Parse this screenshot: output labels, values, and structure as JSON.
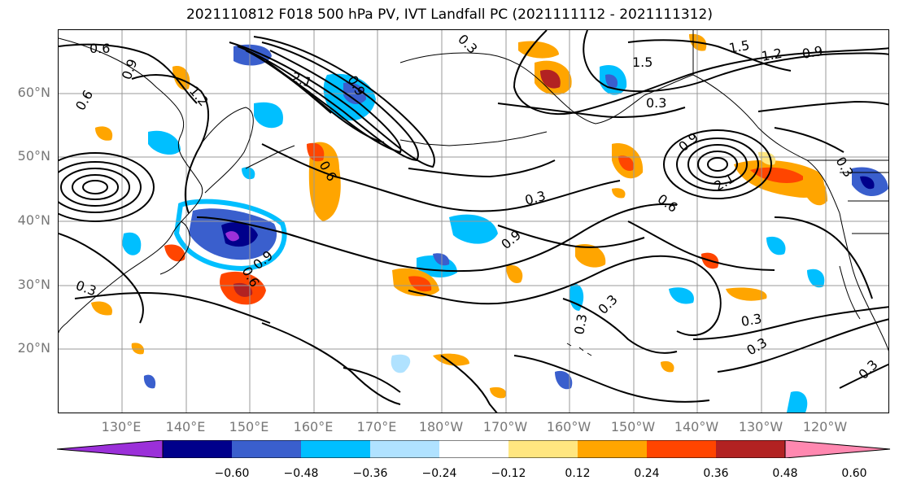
{
  "title": "2021110812 F018 500 hPa PV, IVT Landfall PC (2021111112 - 2021111312)",
  "lat_labels": [
    "60°N",
    "50°N",
    "40°N",
    "30°N",
    "20°N"
  ],
  "lon_labels": [
    "130°E",
    "140°E",
    "150°E",
    "160°E",
    "170°E",
    "180°W",
    "170°W",
    "160°W",
    "150°W",
    "140°W",
    "130°W",
    "120°W"
  ],
  "colorbar": {
    "ticks": [
      "−0.60",
      "−0.48",
      "−0.36",
      "−0.24",
      "−0.12",
      "0.12",
      "0.24",
      "0.36",
      "0.48",
      "0.60"
    ],
    "colors": [
      "#9b30d9",
      "#00008b",
      "#3a5fcd",
      "#00bfff",
      "#b0e2ff",
      "#ffffff",
      "#ffe680",
      "#ffa500",
      "#ff4500",
      "#b22222",
      "#ff88b0"
    ]
  },
  "contour_labels": [
    "0.6",
    "0.9",
    "1.2",
    "2.1",
    "0.6",
    "0.9",
    "0.3",
    "1.5",
    "1.2",
    "0.9",
    "1.5",
    "0.3",
    "0.9",
    "0.6",
    "0.3",
    "0.3",
    "0.3",
    "0.9",
    "0.6",
    "0.3",
    "0.3",
    "0.3",
    "0.3",
    "0.3",
    "0.9",
    "0.6",
    "2.1"
  ]
}
